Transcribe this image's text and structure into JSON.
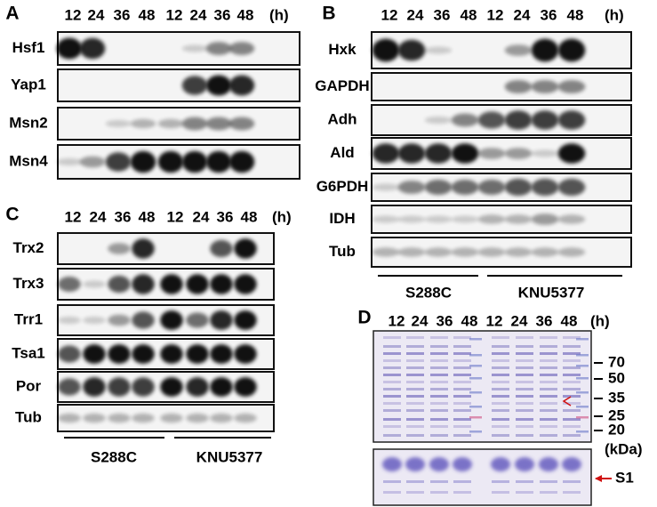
{
  "panels": [
    {
      "label": "A",
      "columns": [
        "12",
        "24",
        "36",
        "48",
        "12",
        "24",
        "36",
        "48"
      ],
      "unit": "(h)",
      "rows": [
        "Hsf1",
        "Yap1",
        "Msn2",
        "Msn4"
      ]
    },
    {
      "label": "B",
      "columns": [
        "12",
        "24",
        "36",
        "48",
        "12",
        "24",
        "36",
        "48"
      ],
      "unit": "(h)",
      "rows": [
        "Hxk",
        "GAPDH",
        "Adh",
        "Ald",
        "G6PDH",
        "IDH",
        "Tub"
      ],
      "groups": [
        "S288C",
        "KNU5377"
      ]
    },
    {
      "label": "C",
      "columns": [
        "12",
        "24",
        "36",
        "48",
        "12",
        "24",
        "36",
        "48"
      ],
      "unit": "(h)",
      "rows": [
        "Trx2",
        "Trx3",
        "Trr1",
        "Tsa1",
        "Por",
        "Tub"
      ],
      "groups": [
        "S288C",
        "KNU5377"
      ]
    },
    {
      "label": "D",
      "columns": [
        "12",
        "24",
        "36",
        "48",
        "12",
        "24",
        "36",
        "48"
      ],
      "unit": "(h)",
      "markers": [
        "70",
        "50",
        "35",
        "25",
        "20"
      ],
      "marker_unit": "(kDa)",
      "annotation": "S1"
    }
  ]
}
